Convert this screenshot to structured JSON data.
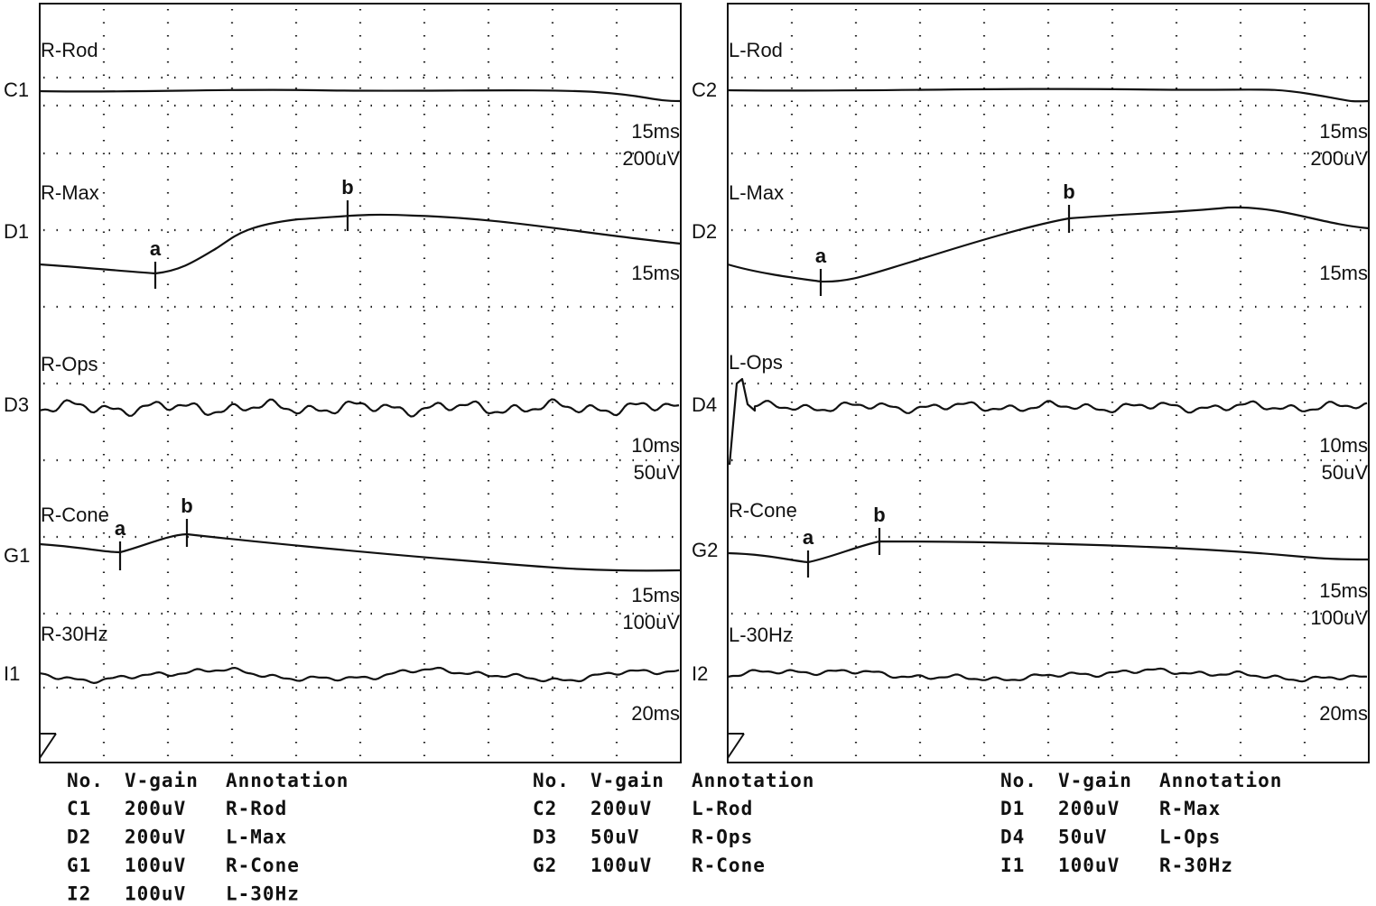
{
  "panels": [
    {
      "traces": [
        {
          "channel": "C1",
          "label": "R-Rod",
          "scale": [
            "15ms",
            "200uV"
          ],
          "markers": []
        },
        {
          "channel": "D1",
          "label": "R-Max",
          "scale": [
            "15ms"
          ],
          "markers": [
            "a",
            "b"
          ]
        },
        {
          "channel": "D3",
          "label": "R-Ops",
          "scale": [
            "10ms",
            "50uV"
          ],
          "markers": []
        },
        {
          "channel": "G1",
          "label": "R-Cone",
          "scale": [
            "15ms",
            "100uV"
          ],
          "markers": [
            "a",
            "b"
          ]
        },
        {
          "channel": "I1",
          "label": "R-30Hz",
          "scale": [
            "20ms"
          ],
          "markers": []
        }
      ]
    },
    {
      "traces": [
        {
          "channel": "C2",
          "label": "L-Rod",
          "scale": [
            "15ms",
            "200uV"
          ],
          "markers": []
        },
        {
          "channel": "D2",
          "label": "L-Max",
          "scale": [
            "15ms"
          ],
          "markers": [
            "a",
            "b"
          ]
        },
        {
          "channel": "D4",
          "label": "L-Ops",
          "scale": [
            "10ms",
            "50uV"
          ],
          "markers": []
        },
        {
          "channel": "G2",
          "label": "R-Cone",
          "scale": [
            "15ms",
            "100uV"
          ],
          "markers": [
            "a",
            "b"
          ]
        },
        {
          "channel": "I2",
          "label": "L-30Hz",
          "scale": [
            "20ms"
          ],
          "markers": []
        }
      ]
    }
  ],
  "table": {
    "groups": [
      {
        "header": [
          "No.",
          "V-gain",
          "Annotation"
        ],
        "rows": [
          [
            "C1",
            "200uV",
            "R-Rod"
          ],
          [
            "D2",
            "200uV",
            "L-Max"
          ],
          [
            "G1",
            "100uV",
            "R-Cone"
          ],
          [
            "I2",
            "100uV",
            "L-30Hz"
          ]
        ]
      },
      {
        "header": [
          "No.",
          "V-gain",
          "Annotation"
        ],
        "rows": [
          [
            "C2",
            "200uV",
            "L-Rod"
          ],
          [
            "D3",
            "50uV",
            "R-Ops"
          ],
          [
            "G2",
            "100uV",
            "R-Cone"
          ]
        ]
      },
      {
        "header": [
          "No.",
          "V-gain",
          "Annotation"
        ],
        "rows": [
          [
            "D1",
            "200uV",
            "R-Max"
          ],
          [
            "D4",
            "50uV",
            "L-Ops"
          ],
          [
            "I1",
            "100uV",
            "R-30Hz"
          ]
        ]
      }
    ]
  }
}
